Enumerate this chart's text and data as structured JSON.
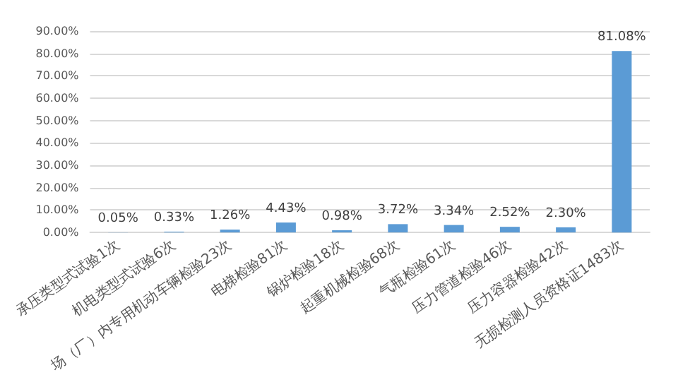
{
  "chart_data": {
    "type": "bar",
    "categories": [
      "承压类型式试验1次",
      "机电类型式试验6次",
      "场（厂）内专用机动车辆检验23次",
      "电梯检验81次",
      "锅炉检验18次",
      "起重机械检验68次",
      "气瓶检验61次",
      "压力管道检验46次",
      "压力容器检验42次",
      "无损检测人员资格证1483次"
    ],
    "values": [
      0.05,
      0.33,
      1.26,
      4.43,
      0.98,
      3.72,
      3.34,
      2.52,
      2.3,
      81.08
    ],
    "value_labels": [
      "0.05%",
      "0.33%",
      "1.26%",
      "4.43%",
      "0.98%",
      "3.72%",
      "3.34%",
      "2.52%",
      "2.30%",
      "81.08%"
    ],
    "color": "#5b9bd5",
    "ylim": [
      0,
      90
    ],
    "yticks": [
      {
        "value": 0,
        "label": "0.00%"
      },
      {
        "value": 10,
        "label": "10.00%"
      },
      {
        "value": 20,
        "label": "20.00%"
      },
      {
        "value": 30,
        "label": "30.00%"
      },
      {
        "value": 40,
        "label": "40.00%"
      },
      {
        "value": 50,
        "label": "50.00%"
      },
      {
        "value": 60,
        "label": "60.00%"
      },
      {
        "value": 70,
        "label": "70.00%"
      },
      {
        "value": 80,
        "label": "80.00%"
      },
      {
        "value": 90,
        "label": "90.00%"
      }
    ],
    "grid": true
  }
}
